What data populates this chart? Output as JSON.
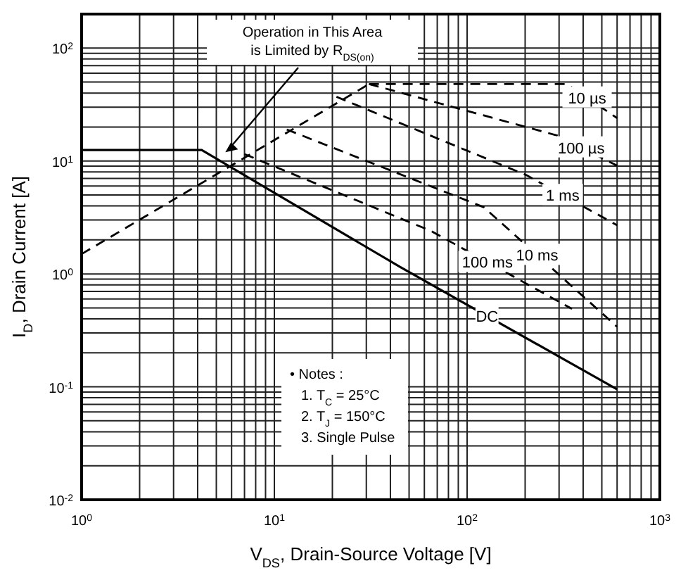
{
  "chart_data": {
    "type": "line",
    "xlabel": "V$_{DS}$, Drain-Source Voltage [V]",
    "ylabel": "I$_{D}$, Drain Current [A]",
    "log": "xy",
    "grid": true,
    "xlim": [
      1,
      1000
    ],
    "ylim": [
      0.01,
      200
    ],
    "xticks": [
      {
        "value": 1,
        "label": "10$^{0}$"
      },
      {
        "value": 2,
        "label": null
      },
      {
        "value": 3,
        "label": null
      },
      {
        "value": 4,
        "label": null
      },
      {
        "value": 5,
        "label": null
      },
      {
        "value": 6,
        "label": null
      },
      {
        "value": 7,
        "label": null
      },
      {
        "value": 8,
        "label": null
      },
      {
        "value": 9,
        "label": null
      },
      {
        "value": 10,
        "label": "10$^{1}$"
      },
      {
        "value": 20,
        "label": null
      },
      {
        "value": 30,
        "label": null
      },
      {
        "value": 40,
        "label": null
      },
      {
        "value": 50,
        "label": null
      },
      {
        "value": 60,
        "label": null
      },
      {
        "value": 70,
        "label": null
      },
      {
        "value": 80,
        "label": null
      },
      {
        "value": 90,
        "label": null
      },
      {
        "value": 100,
        "label": "10$^{2}$"
      },
      {
        "value": 200,
        "label": null
      },
      {
        "value": 300,
        "label": null
      },
      {
        "value": 400,
        "label": null
      },
      {
        "value": 500,
        "label": null
      },
      {
        "value": 600,
        "label": null
      },
      {
        "value": 700,
        "label": null
      },
      {
        "value": 800,
        "label": null
      },
      {
        "value": 900,
        "label": null
      },
      {
        "value": 1000,
        "label": "10$^{3}$"
      }
    ],
    "yticks": [
      {
        "value": 0.01,
        "label": "10$^{-2}$"
      },
      {
        "value": 0.02,
        "label": null
      },
      {
        "value": 0.03,
        "label": null
      },
      {
        "value": 0.04,
        "label": null
      },
      {
        "value": 0.05,
        "label": null
      },
      {
        "value": 0.06,
        "label": null
      },
      {
        "value": 0.07,
        "label": null
      },
      {
        "value": 0.08,
        "label": null
      },
      {
        "value": 0.09,
        "label": null
      },
      {
        "value": 0.1,
        "label": "10$^{-1}$"
      },
      {
        "value": 0.2,
        "label": null
      },
      {
        "value": 0.3,
        "label": null
      },
      {
        "value": 0.4,
        "label": null
      },
      {
        "value": 0.5,
        "label": null
      },
      {
        "value": 0.6,
        "label": null
      },
      {
        "value": 0.7,
        "label": null
      },
      {
        "value": 0.8,
        "label": null
      },
      {
        "value": 0.9,
        "label": null
      },
      {
        "value": 1,
        "label": "10$^{0}$"
      },
      {
        "value": 2,
        "label": null
      },
      {
        "value": 3,
        "label": null
      },
      {
        "value": 4,
        "label": null
      },
      {
        "value": 5,
        "label": null
      },
      {
        "value": 6,
        "label": null
      },
      {
        "value": 7,
        "label": null
      },
      {
        "value": 8,
        "label": null
      },
      {
        "value": 9,
        "label": null
      },
      {
        "value": 10,
        "label": "10$^{1}$"
      },
      {
        "value": 20,
        "label": null
      },
      {
        "value": 30,
        "label": null
      },
      {
        "value": 40,
        "label": null
      },
      {
        "value": 50,
        "label": null
      },
      {
        "value": 60,
        "label": null
      },
      {
        "value": 70,
        "label": null
      },
      {
        "value": 80,
        "label": null
      },
      {
        "value": 90,
        "label": null
      },
      {
        "value": 100,
        "label": "10$^{2}$"
      }
    ],
    "series": [
      {
        "color": "#000000",
        "line_style": "dashed",
        "x": [
          1,
          31
        ],
        "values": [
          1.5,
          48
        ]
      },
      {
        "name": "10 µs",
        "color": "#000000",
        "line_style": "dashed",
        "x": [
          31,
          330,
          600
        ],
        "values": [
          48,
          48,
          24
        ]
      },
      {
        "name": "100 µs",
        "color": "#000000",
        "line_style": "dashed",
        "x": [
          31,
          294,
          600
        ],
        "values": [
          48,
          16.8,
          9.1
        ]
      },
      {
        "name": "1 ms",
        "color": "#000000",
        "line_style": "dashed",
        "x": [
          21,
          203,
          600
        ],
        "values": [
          37,
          7.5,
          2.7
        ]
      },
      {
        "name": "10 ms",
        "color": "#000000",
        "line_style": "dashed",
        "x": [
          11.6,
          122,
          600
        ],
        "values": [
          19,
          3.9,
          0.34
        ]
      },
      {
        "name": "100 ms",
        "color": "#000000",
        "line_style": "dashed",
        "x": [
          7,
          65,
          350
        ],
        "values": [
          11.5,
          2.4,
          0.49
        ]
      },
      {
        "name": "DC",
        "color": "#000000",
        "line_style": "solid",
        "x": [
          1,
          4.2,
          45,
          600
        ],
        "values": [
          12.5,
          12.5,
          1.15,
          0.095
        ]
      }
    ],
    "annotations": [
      "Operation in This Area\nis Limited by R$_{DS(on)}$",
      "• Notes :",
      "1. T$_{C}$ = 25°C",
      "2. T$_{J}$ = 150°C",
      "3. Single Pulse"
    ]
  }
}
